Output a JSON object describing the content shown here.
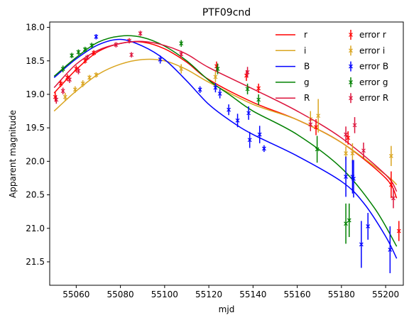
{
  "chart_data": {
    "type": "scatter",
    "title": "PTF09cnd",
    "xlabel": "mjd",
    "ylabel": "Apparent magnitude",
    "xlim": [
      55048,
      55208
    ],
    "ylim": [
      21.85,
      17.92
    ],
    "y_inverted": true,
    "grid": false,
    "legend_position": "top-right",
    "xticks": [
      55060,
      55080,
      55100,
      55120,
      55140,
      55160,
      55180,
      55200
    ],
    "yticks": [
      18.0,
      18.5,
      19.0,
      19.5,
      20.0,
      20.5,
      21.0,
      21.5
    ],
    "xtick_labels": [
      "55060",
      "55080",
      "55100",
      "55120",
      "55140",
      "55160",
      "55180",
      "55200"
    ],
    "ytick_labels": [
      "18.0",
      "18.5",
      "19.0",
      "19.5",
      "20.0",
      "20.5",
      "21.0",
      "21.5"
    ],
    "model_curves": [
      {
        "name": "r",
        "color": "#ff0000",
        "points": [
          [
            55050,
            18.98
          ],
          [
            55060,
            18.63
          ],
          [
            55070,
            18.36
          ],
          [
            55080,
            18.24
          ],
          [
            55090,
            18.22
          ],
          [
            55100,
            18.32
          ],
          [
            55110,
            18.52
          ],
          [
            55120,
            18.78
          ],
          [
            55140,
            19.12
          ],
          [
            55160,
            19.38
          ],
          [
            55180,
            19.72
          ],
          [
            55200,
            20.25
          ],
          [
            55205,
            20.55
          ]
        ]
      },
      {
        "name": "i",
        "color": "#daa520",
        "points": [
          [
            55050,
            19.25
          ],
          [
            55060,
            18.95
          ],
          [
            55070,
            18.7
          ],
          [
            55080,
            18.55
          ],
          [
            55090,
            18.48
          ],
          [
            55100,
            18.5
          ],
          [
            55110,
            18.63
          ],
          [
            55120,
            18.82
          ],
          [
            55140,
            19.15
          ],
          [
            55160,
            19.38
          ],
          [
            55180,
            19.72
          ],
          [
            55200,
            20.2
          ],
          [
            55205,
            20.35
          ]
        ]
      },
      {
        "name": "B",
        "color": "#0000ff",
        "points": [
          [
            55050,
            18.75
          ],
          [
            55060,
            18.47
          ],
          [
            55070,
            18.26
          ],
          [
            55080,
            18.18
          ],
          [
            55090,
            18.28
          ],
          [
            55100,
            18.48
          ],
          [
            55110,
            18.8
          ],
          [
            55120,
            19.15
          ],
          [
            55130,
            19.4
          ],
          [
            55140,
            19.6
          ],
          [
            55160,
            19.92
          ],
          [
            55180,
            20.3
          ],
          [
            55190,
            20.62
          ],
          [
            55200,
            21.12
          ],
          [
            55205,
            21.45
          ]
        ]
      },
      {
        "name": "g",
        "color": "#008000",
        "points": [
          [
            55050,
            18.73
          ],
          [
            55060,
            18.45
          ],
          [
            55070,
            18.22
          ],
          [
            55080,
            18.13
          ],
          [
            55090,
            18.15
          ],
          [
            55100,
            18.28
          ],
          [
            55110,
            18.5
          ],
          [
            55120,
            18.79
          ],
          [
            55130,
            19.02
          ],
          [
            55140,
            19.25
          ],
          [
            55160,
            19.6
          ],
          [
            55180,
            20.1
          ],
          [
            55195,
            20.7
          ],
          [
            55205,
            21.27
          ]
        ]
      },
      {
        "name": "R",
        "color": "#dc143c",
        "points": [
          [
            55050,
            18.9
          ],
          [
            55060,
            18.55
          ],
          [
            55070,
            18.34
          ],
          [
            55080,
            18.24
          ],
          [
            55090,
            18.21
          ],
          [
            55100,
            18.27
          ],
          [
            55110,
            18.4
          ],
          [
            55120,
            18.6
          ],
          [
            55140,
            18.92
          ],
          [
            55160,
            19.25
          ],
          [
            55180,
            19.65
          ],
          [
            55200,
            20.2
          ],
          [
            55205,
            20.45
          ]
        ]
      }
    ],
    "error_series": [
      {
        "name": "error r",
        "color": "#ff0000",
        "points": [
          {
            "x": 55050.5,
            "y": 19.04,
            "err": 0.07
          },
          {
            "x": 55053,
            "y": 18.84,
            "err": 0.05
          },
          {
            "x": 55056,
            "y": 18.75,
            "err": 0.05
          },
          {
            "x": 55060,
            "y": 18.62,
            "err": 0.05
          },
          {
            "x": 55064,
            "y": 18.5,
            "err": 0.04
          },
          {
            "x": 55068,
            "y": 18.38,
            "err": 0.04
          },
          {
            "x": 55123.5,
            "y": 18.58,
            "err": 0.07
          },
          {
            "x": 55137,
            "y": 18.72,
            "err": 0.08
          },
          {
            "x": 55142.5,
            "y": 18.91,
            "err": 0.07
          },
          {
            "x": 55168.5,
            "y": 19.49,
            "err": 0.12
          },
          {
            "x": 55183,
            "y": 19.65,
            "err": 0.1
          },
          {
            "x": 55202.5,
            "y": 20.35,
            "err": 0.2
          },
          {
            "x": 55206,
            "y": 21.04,
            "err": 0.15
          }
        ]
      },
      {
        "name": "error i",
        "color": "#daa520",
        "points": [
          {
            "x": 55055,
            "y": 19.04,
            "err": 0.06
          },
          {
            "x": 55059.5,
            "y": 18.93,
            "err": 0.05
          },
          {
            "x": 55063,
            "y": 18.84,
            "err": 0.05
          },
          {
            "x": 55066,
            "y": 18.75,
            "err": 0.04
          },
          {
            "x": 55069,
            "y": 18.71,
            "err": 0.04
          },
          {
            "x": 55107.5,
            "y": 18.62,
            "err": 0.07
          },
          {
            "x": 55123,
            "y": 18.74,
            "err": 0.08
          },
          {
            "x": 55166,
            "y": 19.37,
            "err": 0.12
          },
          {
            "x": 55169.5,
            "y": 19.32,
            "err": 0.25
          },
          {
            "x": 55182,
            "y": 19.88,
            "err": 0.1
          },
          {
            "x": 55185,
            "y": 19.88,
            "err": 0.15
          },
          {
            "x": 55202.5,
            "y": 19.92,
            "err": 0.15
          }
        ]
      },
      {
        "name": "error B",
        "color": "#0000ff",
        "points": [
          {
            "x": 55069,
            "y": 18.14,
            "err": 0.04
          },
          {
            "x": 55098,
            "y": 18.48,
            "err": 0.06
          },
          {
            "x": 55116,
            "y": 18.93,
            "err": 0.05
          },
          {
            "x": 55123,
            "y": 18.9,
            "err": 0.07
          },
          {
            "x": 55125,
            "y": 18.99,
            "err": 0.07
          },
          {
            "x": 55129,
            "y": 19.23,
            "err": 0.08
          },
          {
            "x": 55133,
            "y": 19.39,
            "err": 0.1
          },
          {
            "x": 55138,
            "y": 19.28,
            "err": 0.1
          },
          {
            "x": 55138.5,
            "y": 19.68,
            "err": 0.12
          },
          {
            "x": 55143,
            "y": 19.6,
            "err": 0.13
          },
          {
            "x": 55145,
            "y": 19.81,
            "err": 0.05
          },
          {
            "x": 55182,
            "y": 20.23,
            "err": 0.3
          },
          {
            "x": 55185,
            "y": 20.23,
            "err": 0.25
          },
          {
            "x": 55185.5,
            "y": 20.26,
            "err": 0.28
          },
          {
            "x": 55189,
            "y": 21.24,
            "err": 0.35
          },
          {
            "x": 55192,
            "y": 20.97,
            "err": 0.2
          },
          {
            "x": 55202,
            "y": 21.32,
            "err": 0.35
          }
        ]
      },
      {
        "name": "error g",
        "color": "#008000",
        "points": [
          {
            "x": 55054,
            "y": 18.62,
            "err": 0.05
          },
          {
            "x": 55058,
            "y": 18.42,
            "err": 0.04
          },
          {
            "x": 55061,
            "y": 18.37,
            "err": 0.04
          },
          {
            "x": 55064,
            "y": 18.33,
            "err": 0.04
          },
          {
            "x": 55067,
            "y": 18.27,
            "err": 0.04
          },
          {
            "x": 55107.5,
            "y": 18.24,
            "err": 0.05
          },
          {
            "x": 55124,
            "y": 18.62,
            "err": 0.08
          },
          {
            "x": 55137.5,
            "y": 18.92,
            "err": 0.08
          },
          {
            "x": 55142.5,
            "y": 19.08,
            "err": 0.08
          },
          {
            "x": 55169,
            "y": 19.82,
            "err": 0.2
          },
          {
            "x": 55182,
            "y": 20.93,
            "err": 0.3
          },
          {
            "x": 55183.5,
            "y": 20.88,
            "err": 0.25
          }
        ]
      },
      {
        "name": "error R",
        "color": "#dc143c",
        "points": [
          {
            "x": 55051,
            "y": 19.08,
            "err": 0.06
          },
          {
            "x": 55054,
            "y": 18.95,
            "err": 0.05
          },
          {
            "x": 55057,
            "y": 18.78,
            "err": 0.05
          },
          {
            "x": 55061,
            "y": 18.65,
            "err": 0.05
          },
          {
            "x": 55065,
            "y": 18.45,
            "err": 0.04
          },
          {
            "x": 55078,
            "y": 18.26,
            "err": 0.04
          },
          {
            "x": 55084,
            "y": 18.2,
            "err": 0.04
          },
          {
            "x": 55085,
            "y": 18.41,
            "err": 0.04
          },
          {
            "x": 55089,
            "y": 18.09,
            "err": 0.04
          },
          {
            "x": 55107.5,
            "y": 18.4,
            "err": 0.05
          },
          {
            "x": 55137.5,
            "y": 18.67,
            "err": 0.08
          },
          {
            "x": 55166,
            "y": 19.45,
            "err": 0.1
          },
          {
            "x": 55182,
            "y": 19.6,
            "err": 0.12
          },
          {
            "x": 55186,
            "y": 19.46,
            "err": 0.12
          },
          {
            "x": 55190,
            "y": 19.84,
            "err": 0.12
          },
          {
            "x": 55203.5,
            "y": 20.55,
            "err": 0.15
          }
        ]
      }
    ],
    "legend": {
      "col1": [
        {
          "label": "r",
          "color": "#ff0000",
          "kind": "line"
        },
        {
          "label": "i",
          "color": "#daa520",
          "kind": "line"
        },
        {
          "label": "B",
          "color": "#0000ff",
          "kind": "line"
        },
        {
          "label": "g",
          "color": "#008000",
          "kind": "line"
        },
        {
          "label": "R",
          "color": "#dc143c",
          "kind": "line"
        }
      ],
      "col2": [
        {
          "label": "error r",
          "color": "#ff0000",
          "kind": "errorbar"
        },
        {
          "label": "error i",
          "color": "#daa520",
          "kind": "errorbar"
        },
        {
          "label": "error B",
          "color": "#0000ff",
          "kind": "errorbar"
        },
        {
          "label": "error g",
          "color": "#008000",
          "kind": "errorbar"
        },
        {
          "label": "error R",
          "color": "#dc143c",
          "kind": "errorbar"
        }
      ]
    }
  }
}
